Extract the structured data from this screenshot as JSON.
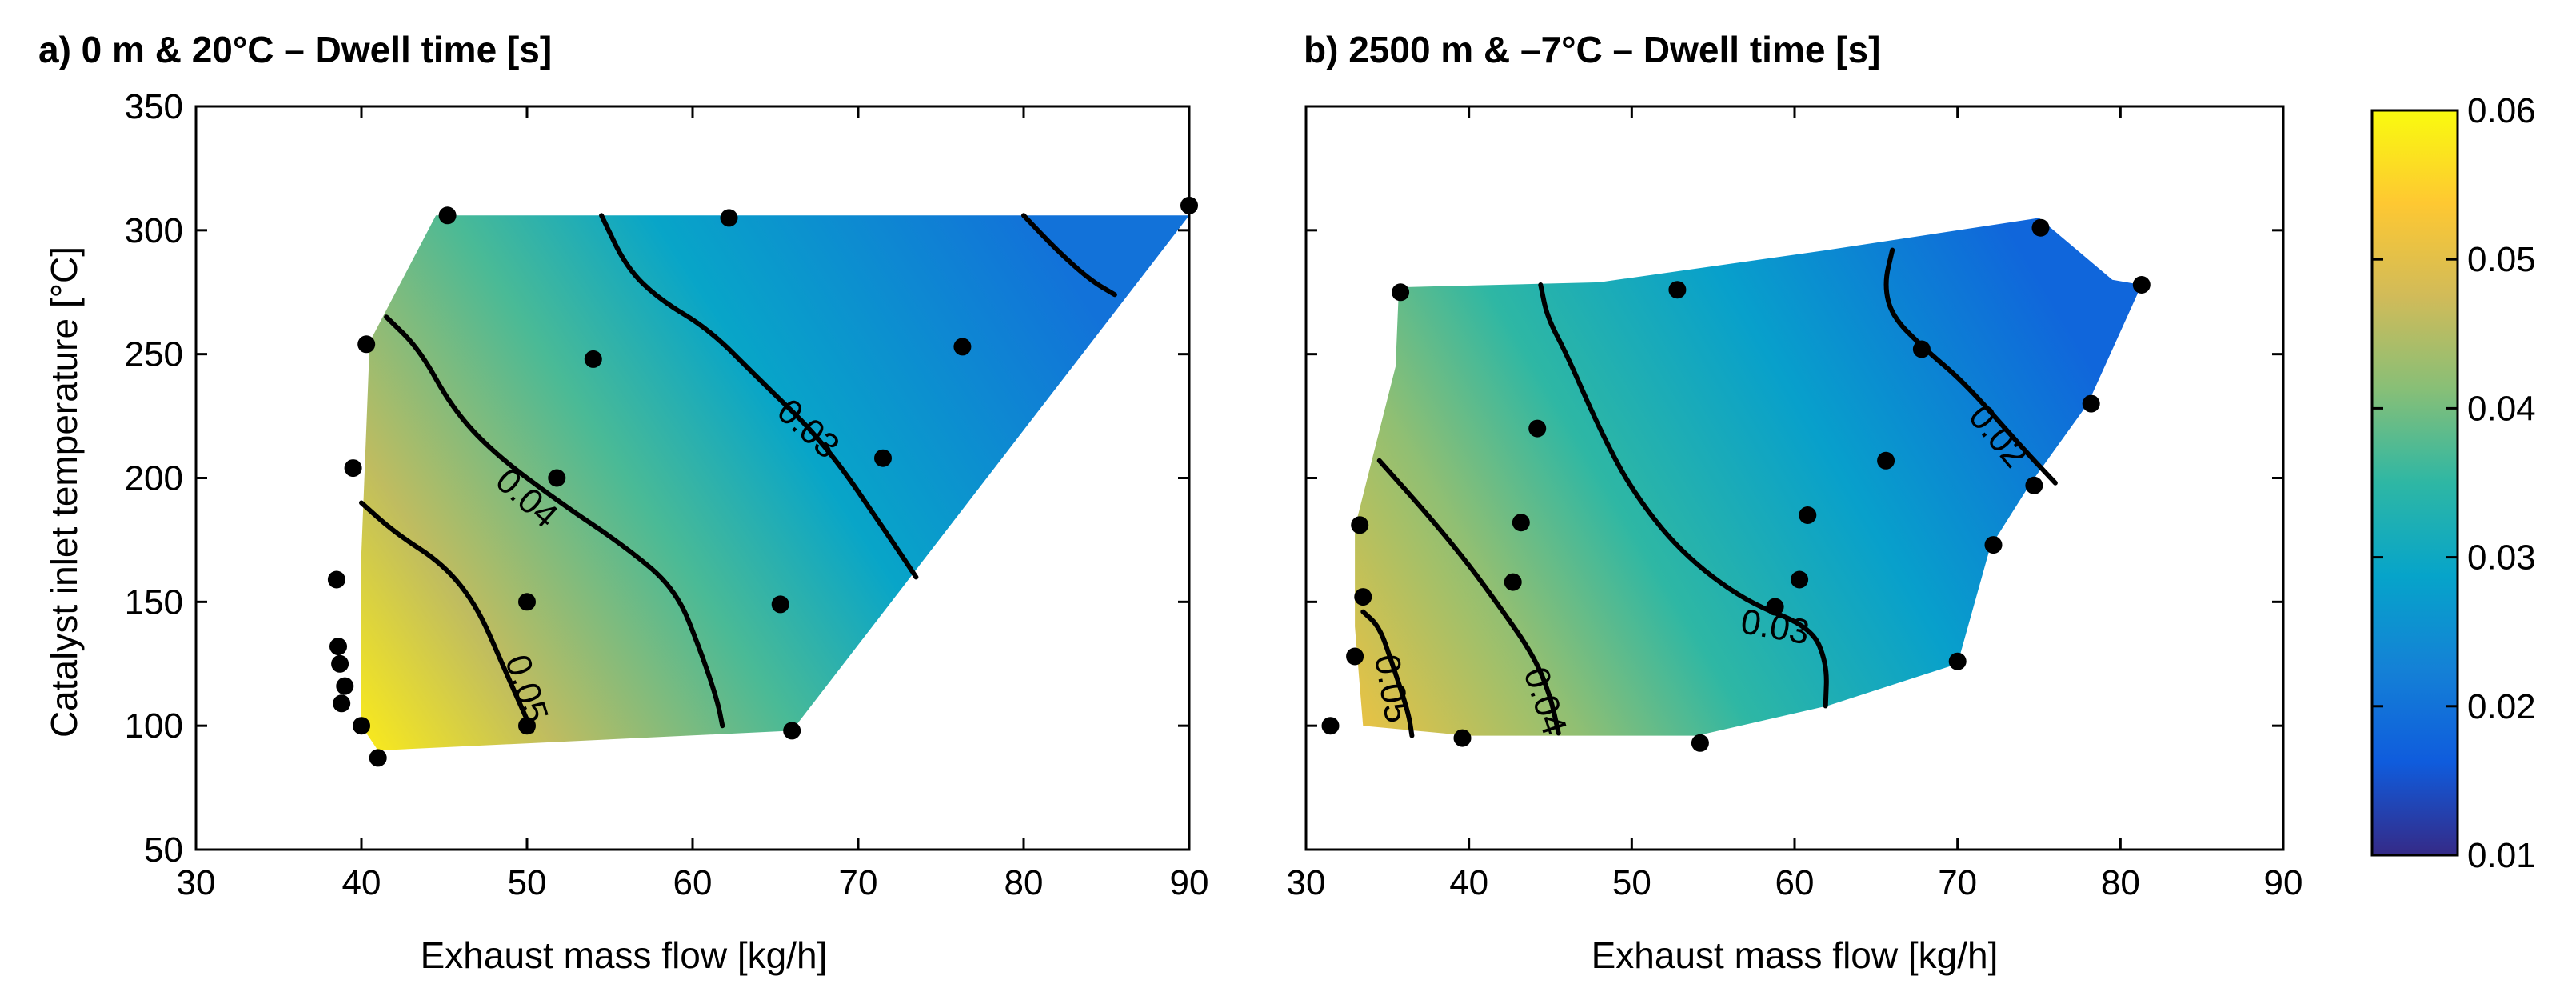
{
  "chart_data": [
    {
      "type": "contour",
      "panel": "a",
      "title": "a) 0 m & 20°C – Dwell time [s]",
      "xlabel": "Exhaust mass flow [kg/h]",
      "ylabel": "Catalyst inlet temperature [°C]",
      "xlim": [
        30,
        90
      ],
      "ylim": [
        50,
        350
      ],
      "xticks": [
        "30",
        "40",
        "50",
        "60",
        "70",
        "80",
        "90"
      ],
      "yticks": [
        "50",
        "100",
        "150",
        "200",
        "250",
        "300",
        "350"
      ],
      "region": [
        [
          41,
          90
        ],
        [
          40,
          100
        ],
        [
          40,
          170
        ],
        [
          40.5,
          255
        ],
        [
          44.5,
          306
        ],
        [
          90,
          306
        ],
        [
          66,
          98
        ],
        [
          41,
          90
        ]
      ],
      "gradient_stops": [
        {
          "x": 39,
          "y": 100,
          "value": 0.058
        },
        {
          "x": 50,
          "y": 110,
          "value": 0.046
        },
        {
          "x": 56,
          "y": 200,
          "value": 0.037
        },
        {
          "x": 68,
          "y": 200,
          "value": 0.029
        },
        {
          "x": 82,
          "y": 290,
          "value": 0.02
        }
      ],
      "contours": [
        {
          "level": 0.05,
          "label": "0.05",
          "label_at": [
            50,
            115
          ],
          "label_angle": 72,
          "points": [
            [
              40,
              190
            ],
            [
              42,
              178
            ],
            [
              45,
              165
            ],
            [
              47,
              148
            ],
            [
              48.5,
              125
            ],
            [
              49.5,
              110
            ],
            [
              50.3,
              98
            ]
          ]
        },
        {
          "level": 0.04,
          "label": "0.04",
          "label_at": [
            50,
            192
          ],
          "label_angle": 42,
          "points": [
            [
              41.5,
              265
            ],
            [
              43.5,
              252
            ],
            [
              45.5,
              228
            ],
            [
              48,
              210
            ],
            [
              52,
              190
            ],
            [
              56,
              172
            ],
            [
              59,
              155
            ],
            [
              60.5,
              130
            ],
            [
              61.5,
              110
            ],
            [
              61.8,
              100
            ]
          ]
        },
        {
          "level": 0.03,
          "label": "0.03",
          "label_at": [
            67,
            220
          ],
          "label_angle": 42,
          "points": [
            [
              54.5,
              306
            ],
            [
              56,
              285
            ],
            [
              58,
              272
            ],
            [
              61,
              260
            ],
            [
              64,
              240
            ],
            [
              68,
              214
            ],
            [
              72,
              175
            ],
            [
              73.5,
              160
            ]
          ]
        },
        {
          "level": 0.02,
          "label": "",
          "label_at": null,
          "label_angle": 0,
          "points": [
            [
              80,
              306
            ],
            [
              82,
              292
            ],
            [
              84,
              280
            ],
            [
              85.5,
              274
            ]
          ]
        }
      ],
      "points": [
        [
          41,
          87
        ],
        [
          40,
          100
        ],
        [
          38.8,
          109
        ],
        [
          39,
          116
        ],
        [
          38.7,
          125
        ],
        [
          38.6,
          132
        ],
        [
          38.5,
          159
        ],
        [
          39.5,
          204
        ],
        [
          40.3,
          254
        ],
        [
          45.2,
          306
        ],
        [
          62.2,
          305
        ],
        [
          90,
          310
        ],
        [
          54,
          248
        ],
        [
          76.3,
          253
        ],
        [
          71.5,
          208
        ],
        [
          51.8,
          200
        ],
        [
          50,
          150
        ],
        [
          50,
          100
        ],
        [
          65.3,
          149
        ],
        [
          66,
          98
        ]
      ]
    },
    {
      "type": "contour",
      "panel": "b",
      "title": "b) 2500 m & –7°C – Dwell time [s]",
      "xlabel": "Exhaust mass flow [kg/h]",
      "ylabel": "",
      "xlim": [
        30,
        90
      ],
      "ylim": [
        50,
        350
      ],
      "xticks": [
        "30",
        "40",
        "50",
        "60",
        "70",
        "80",
        "90"
      ],
      "yticks": [],
      "region": [
        [
          33.5,
          100
        ],
        [
          33,
          140
        ],
        [
          33,
          180
        ],
        [
          35.5,
          245
        ],
        [
          35.7,
          277
        ],
        [
          48,
          279
        ],
        [
          62,
          292
        ],
        [
          75,
          305
        ],
        [
          79.5,
          280
        ],
        [
          81.3,
          278
        ],
        [
          78,
          230
        ],
        [
          74.5,
          198
        ],
        [
          72,
          172
        ],
        [
          70,
          125
        ],
        [
          62,
          108
        ],
        [
          54,
          96
        ],
        [
          40,
          96
        ],
        [
          33.5,
          100
        ]
      ],
      "gradient_stops": [
        {
          "x": 33,
          "y": 100,
          "value": 0.051
        },
        {
          "x": 42,
          "y": 150,
          "value": 0.042
        },
        {
          "x": 50,
          "y": 180,
          "value": 0.035
        },
        {
          "x": 62,
          "y": 210,
          "value": 0.028
        },
        {
          "x": 76,
          "y": 270,
          "value": 0.018
        }
      ],
      "contours": [
        {
          "level": 0.05,
          "label": "0.05",
          "label_at": [
            35.3,
            115
          ],
          "label_angle": 80,
          "points": [
            [
              33.5,
              146
            ],
            [
              34.5,
              140
            ],
            [
              35.3,
              125
            ],
            [
              36.3,
              105
            ],
            [
              36.5,
              96
            ]
          ]
        },
        {
          "level": 0.04,
          "label": "0.04",
          "label_at": [
            44.7,
            110
          ],
          "label_angle": 72,
          "points": [
            [
              34.5,
              207
            ],
            [
              37.5,
              185
            ],
            [
              40,
              165
            ],
            [
              42,
              147
            ],
            [
              44,
              128
            ],
            [
              45,
              112
            ],
            [
              45.5,
              97
            ]
          ]
        },
        {
          "level": 0.03,
          "label": "0.03",
          "label_at": [
            58.8,
            140
          ],
          "label_angle": 10,
          "points": [
            [
              44.4,
              278
            ],
            [
              44.8,
              265
            ],
            [
              46,
              250
            ],
            [
              48,
              220
            ],
            [
              50,
              195
            ],
            [
              53,
              170
            ],
            [
              57,
              150
            ],
            [
              61,
              140
            ],
            [
              62,
              125
            ],
            [
              61.9,
              108
            ]
          ]
        },
        {
          "level": 0.02,
          "label": "0.02",
          "label_at": [
            72.5,
            217
          ],
          "label_angle": 50,
          "points": [
            [
              66,
              292
            ],
            [
              65.5,
              278
            ],
            [
              66,
              265
            ],
            [
              68,
              252
            ],
            [
              70.5,
              238
            ],
            [
              74,
              212
            ],
            [
              76,
              198
            ]
          ]
        }
      ],
      "points": [
        [
          31.5,
          100
        ],
        [
          33,
          128
        ],
        [
          33.5,
          152
        ],
        [
          33.3,
          181
        ],
        [
          35.8,
          275
        ],
        [
          39.6,
          95
        ],
        [
          54.2,
          93
        ],
        [
          42.7,
          158
        ],
        [
          43.2,
          182
        ],
        [
          44.2,
          220
        ],
        [
          52.8,
          276
        ],
        [
          58.8,
          148
        ],
        [
          60.3,
          159
        ],
        [
          60.8,
          185
        ],
        [
          65.6,
          207
        ],
        [
          67.8,
          252
        ],
        [
          70,
          126
        ],
        [
          72.2,
          173
        ],
        [
          74.7,
          197
        ],
        [
          75.1,
          301
        ],
        [
          78.2,
          230
        ],
        [
          81.3,
          278
        ]
      ]
    }
  ],
  "colorbar": {
    "min": 0.01,
    "max": 0.06,
    "ticks": [
      "0.01",
      "0.02",
      "0.03",
      "0.04",
      "0.05",
      "0.06"
    ],
    "colormap": [
      "#352a87",
      "#0f5cdd",
      "#1481d6",
      "#06a4ca",
      "#2eb7a4",
      "#87bf77",
      "#d1bb59",
      "#fec832",
      "#f9fb0e"
    ]
  }
}
